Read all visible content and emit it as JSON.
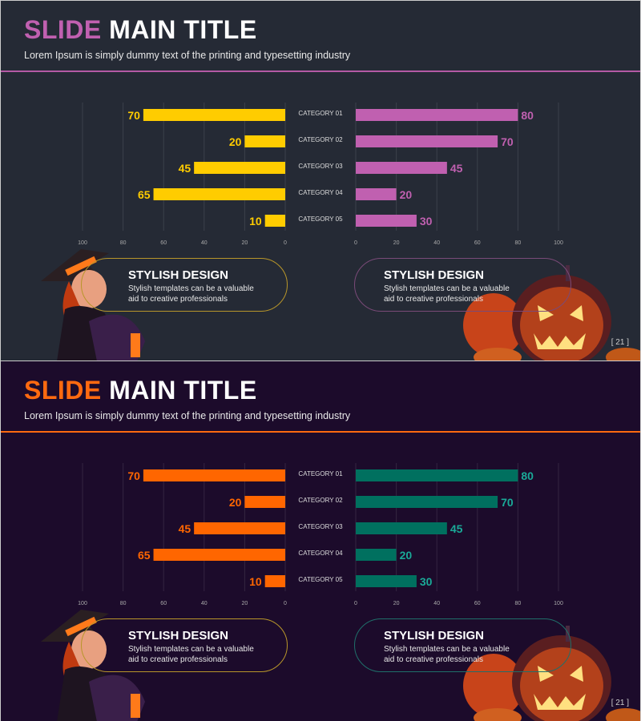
{
  "slides": [
    {
      "title_accent": "SLIDE",
      "title_rest": "MAIN TITLE",
      "subtitle": "Lorem Ipsum is simply dummy text of the printing and typesetting industry",
      "colors": {
        "background": "#252a35",
        "title_accent": "#c060b0",
        "rule": "#b45aa5",
        "left_bar": "#ffcc00",
        "left_label": "#ffcc00",
        "right_bar": "#c060b0",
        "right_label": "#c060b0",
        "left_pill": "#b8962a",
        "right_pill": "#7a4a78"
      },
      "cards": [
        {
          "heading": "STYLISH DESIGN",
          "text": "Stylish templates can be a valuable aid to creative professionals"
        },
        {
          "heading": "STYLISH DESIGN",
          "text": "Stylish templates can be a valuable aid to creative professionals"
        }
      ],
      "page_number": "[ 21 ]"
    },
    {
      "title_accent": "SLIDE",
      "title_rest": "MAIN TITLE",
      "subtitle": "Lorem Ipsum is simply dummy text of the printing and typesetting industry",
      "colors": {
        "background": "#1c0b2b",
        "title_accent": "#ff6a10",
        "rule": "#ff6a10",
        "left_bar": "#ff6600",
        "left_label": "#ff6600",
        "right_bar": "#00705f",
        "right_label": "#1aaa98",
        "left_pill": "#b8962a",
        "right_pill": "#1f6f6a"
      },
      "cards": [
        {
          "heading": "STYLISH DESIGN",
          "text": "Stylish templates can be a valuable aid to creative professionals"
        },
        {
          "heading": "STYLISH DESIGN",
          "text": "Stylish templates can be a valuable aid to creative professionals"
        }
      ],
      "page_number": "[ 21 ]"
    }
  ],
  "chart_data": [
    {
      "type": "bar",
      "orientation": "horizontal-butterfly",
      "categories": [
        "CATEGORY 01",
        "CATEGORY 02",
        "CATEGORY 03",
        "CATEGORY 04",
        "CATEGORY 05"
      ],
      "series": [
        {
          "values": [
            70,
            20,
            45,
            65,
            10
          ],
          "direction": "left"
        },
        {
          "values": [
            80,
            70,
            45,
            20,
            30
          ],
          "direction": "right"
        }
      ],
      "xlim": [
        0,
        100
      ],
      "ticks": [
        0,
        20,
        40,
        60,
        80,
        100
      ],
      "grid": true
    },
    {
      "type": "bar",
      "orientation": "horizontal-butterfly",
      "categories": [
        "CATEGORY 01",
        "CATEGORY 02",
        "CATEGORY 03",
        "CATEGORY 04",
        "CATEGORY 05"
      ],
      "series": [
        {
          "values": [
            70,
            20,
            45,
            65,
            10
          ],
          "direction": "left"
        },
        {
          "values": [
            80,
            70,
            45,
            20,
            30
          ],
          "direction": "right"
        }
      ],
      "xlim": [
        0,
        100
      ],
      "ticks": [
        0,
        20,
        40,
        60,
        80,
        100
      ],
      "grid": true
    }
  ]
}
